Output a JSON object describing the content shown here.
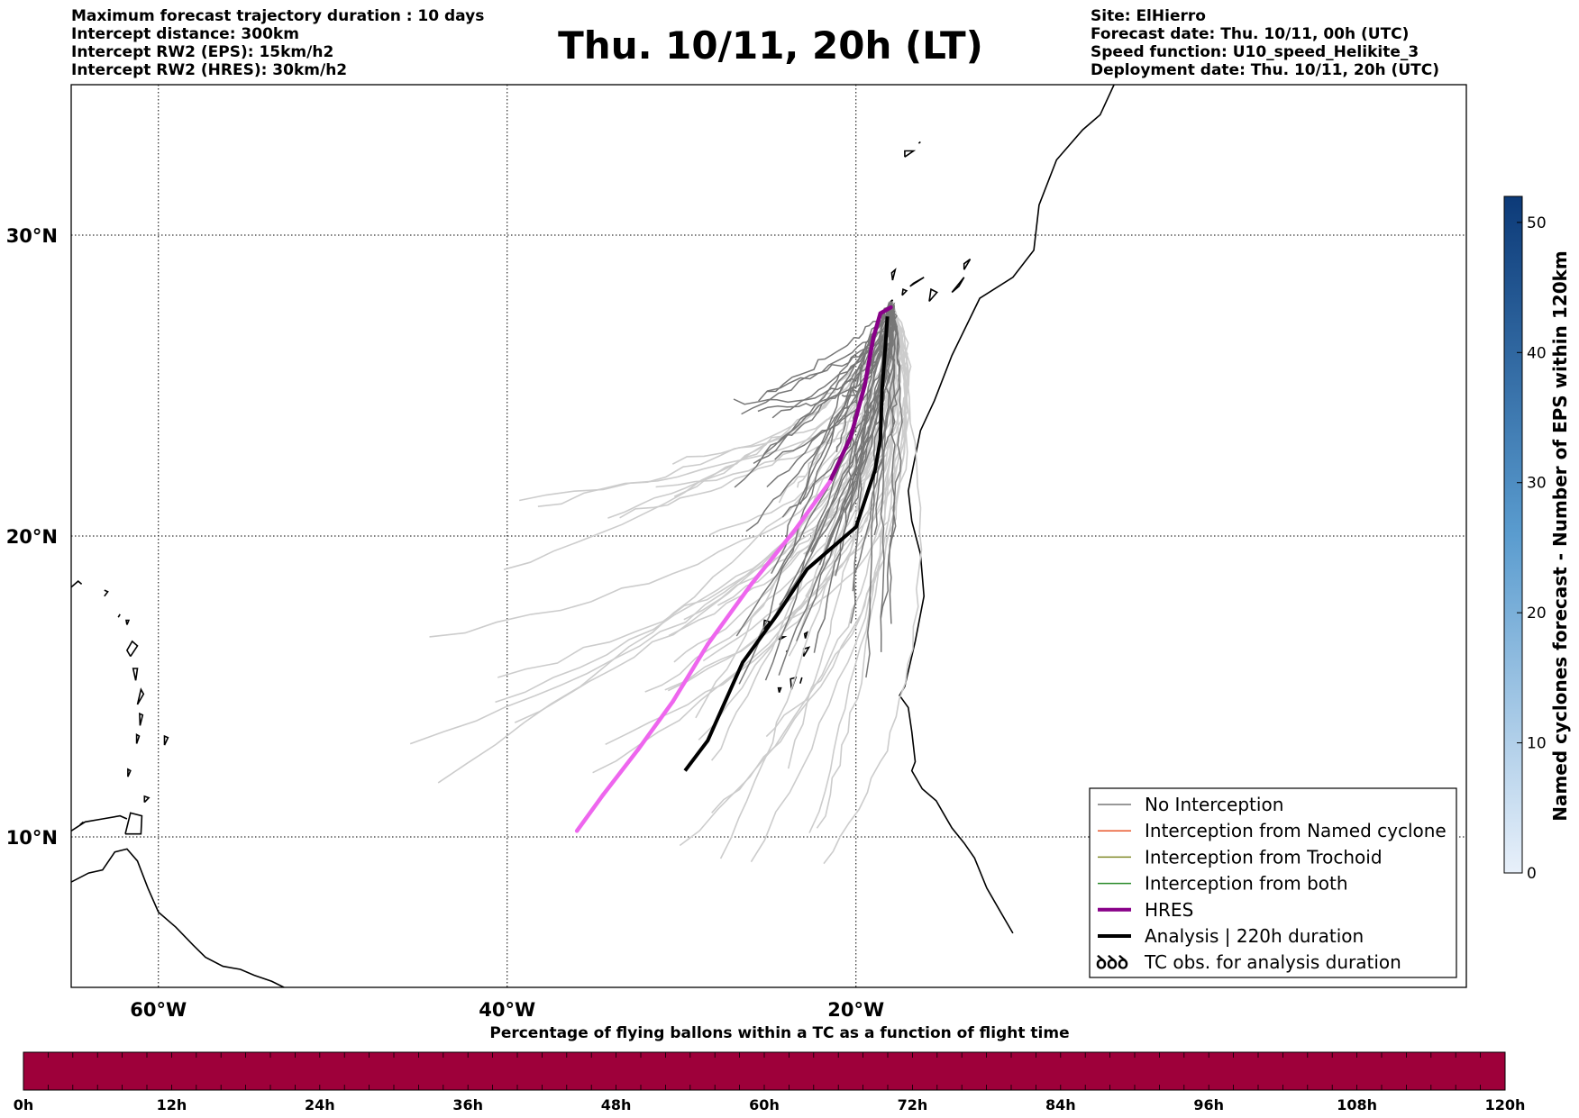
{
  "title": "Thu. 10/11, 20h (LT)",
  "info_left": [
    "Maximum forecast trajectory duration : 10 days",
    "Intercept distance: 300km",
    "Intercept RW2 (EPS):  15km/h2",
    "Intercept RW2 (HRES): 30km/h2"
  ],
  "info_right": [
    "Site: ElHierro",
    "Forecast date: Thu. 10/11, 00h (UTC)",
    "Speed function: U10_speed_Helikite_3",
    "Deployment date: Thu. 10/11, 20h (UTC)"
  ],
  "map": {
    "lon_range": [
      -65,
      15
    ],
    "lat_range": [
      5,
      35
    ],
    "lat_ticks": [
      {
        "value": 30,
        "label": "30°N"
      },
      {
        "value": 20,
        "label": "20°N"
      },
      {
        "value": 10,
        "label": "10°N"
      }
    ],
    "lon_ticks": [
      {
        "value": -60,
        "label": "60°W"
      },
      {
        "value": -40,
        "label": "40°W"
      },
      {
        "value": -20,
        "label": "20°W"
      }
    ],
    "site": {
      "lon": -18.0,
      "lat": 27.7
    },
    "colors": {
      "no_interception": "#777777",
      "named_cyclone": "#e8552a",
      "trochoid": "#808a2a",
      "both": "#2a8a2a",
      "hres_start": "#880088",
      "hres_end": "#ee66ee",
      "analysis": "#000000",
      "far_trajectory": "#cccccc"
    }
  },
  "chart_data": {
    "type": "line",
    "hres_track": [
      [
        -18.0,
        27.6
      ],
      [
        -18.6,
        27.4
      ],
      [
        -19.0,
        26.6
      ],
      [
        -19.5,
        25.0
      ],
      [
        -20.3,
        23.3
      ],
      [
        -21.5,
        21.8
      ],
      [
        -23.5,
        20.2
      ],
      [
        -26.0,
        18.4
      ],
      [
        -28.5,
        16.4
      ],
      [
        -30.5,
        14.5
      ],
      [
        -32.5,
        12.9
      ],
      [
        -34.5,
        11.4
      ],
      [
        -36.0,
        10.2
      ]
    ],
    "analysis_track": [
      [
        -18.2,
        27.3
      ],
      [
        -18.3,
        26.4
      ],
      [
        -18.5,
        24.9
      ],
      [
        -18.6,
        23.2
      ],
      [
        -18.9,
        22.2
      ],
      [
        -20.0,
        20.3
      ],
      [
        -21.0,
        19.8
      ],
      [
        -22.8,
        18.9
      ],
      [
        -24.5,
        17.4
      ],
      [
        -26.5,
        15.8
      ],
      [
        -27.5,
        14.5
      ],
      [
        -28.5,
        13.2
      ],
      [
        -29.8,
        12.2
      ]
    ],
    "legend": [
      {
        "label": "No Interception",
        "color": "#777777",
        "width": 1.5
      },
      {
        "label": "Interception from Named cyclone",
        "color": "#e8552a",
        "width": 1.5
      },
      {
        "label": "Interception from Trochoid",
        "color": "#808a2a",
        "width": 1.5
      },
      {
        "label": "Interception from both",
        "color": "#2a8a2a",
        "width": 1.5
      },
      {
        "label": "HRES",
        "color": "#880088",
        "width": 4
      },
      {
        "label": "Analysis | 220h duration",
        "color": "#000000",
        "width": 4
      },
      {
        "label": "TC obs. for analysis duration",
        "color": "#000000",
        "symbol": "ꝺꝺꝺ"
      }
    ]
  },
  "colorbar_right": {
    "label": "Named cyclones forecast - Number of EPS within 120km",
    "min": 0,
    "max": 52,
    "ticks": [
      0,
      10,
      20,
      30,
      40,
      50
    ],
    "color_low": "#e8f0fa",
    "color_high": "#0c3a78"
  },
  "colorbar_bottom": {
    "title": "Percentage of flying ballons within a TC as a function of flight time",
    "ticks": [
      "0h",
      "12h",
      "24h",
      "36h",
      "48h",
      "60h",
      "72h",
      "84h",
      "96h",
      "108h",
      "120h"
    ],
    "fill_color": "#9e003a",
    "segments": 60
  }
}
